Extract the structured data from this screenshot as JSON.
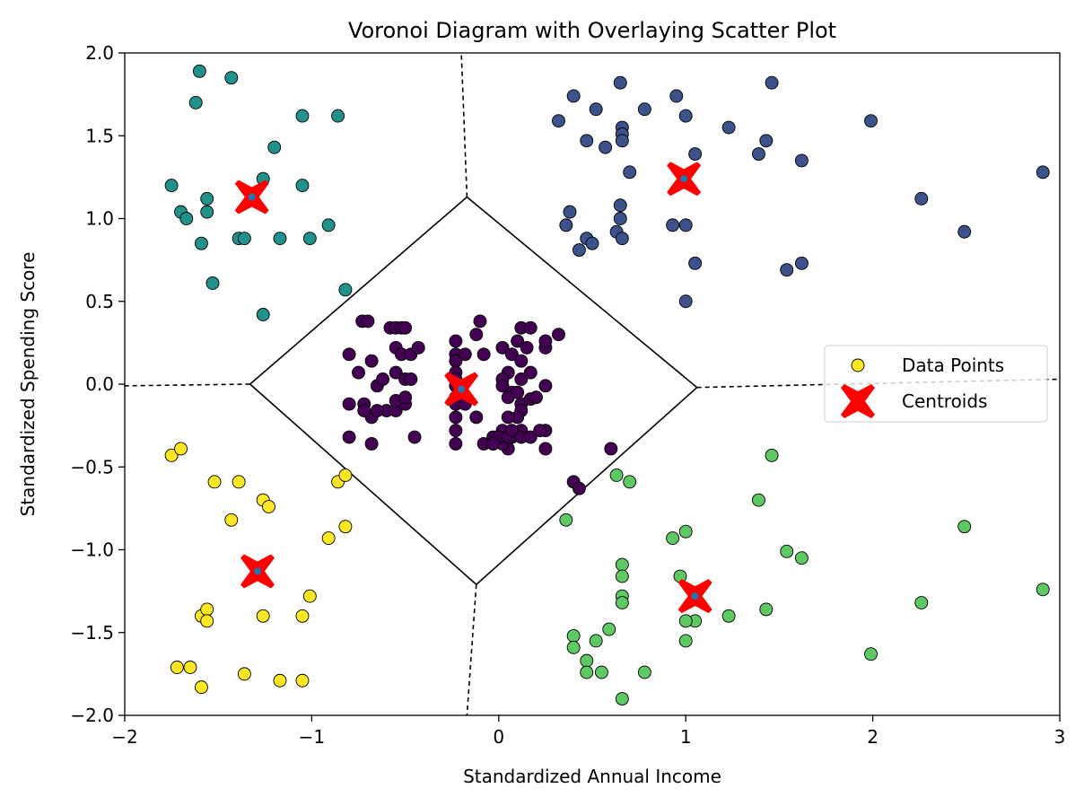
{
  "chart_data": {
    "type": "scatter",
    "title": "Voronoi Diagram with Overlaying Scatter Plot",
    "xlabel": "Standardized Annual Income",
    "ylabel": "Standardized Spending Score",
    "xlim": [
      -2,
      3
    ],
    "ylim": [
      -2,
      2
    ],
    "xticks": [
      -2,
      -1,
      0,
      1,
      2,
      3
    ],
    "xtick_labels": [
      "−2",
      "−1",
      "0",
      "1",
      "2",
      "3"
    ],
    "yticks": [
      -2.0,
      -1.5,
      -1.0,
      -0.5,
      0.0,
      0.5,
      1.0,
      1.5,
      2.0
    ],
    "ytick_labels": [
      "−2.0",
      "−1.5",
      "−1.0",
      "−0.5",
      "0.0",
      "0.5",
      "1.0",
      "1.5",
      "2.0"
    ],
    "grid": false,
    "legend": {
      "placement": "center-right",
      "entries": [
        "Data Points",
        "Centroids"
      ]
    },
    "colors": {
      "cluster_center": "#440154",
      "cluster_top_right": "#3b528b",
      "cluster_top_left": "#21918c",
      "cluster_bottom_right": "#5ec962",
      "cluster_bottom_left": "#fde725",
      "centroid_marker": "#ff0000",
      "centroid_dot": "#1f77b4",
      "voronoi_edge": "#000000"
    },
    "centroids": [
      {
        "x": -1.32,
        "y": 1.13
      },
      {
        "x": 0.99,
        "y": 1.24
      },
      {
        "x": -0.2,
        "y": -0.03
      },
      {
        "x": -1.29,
        "y": -1.13
      },
      {
        "x": 1.05,
        "y": -1.28
      }
    ],
    "voronoi": {
      "finite_edges": [
        [
          [
            -0.17,
            1.13
          ],
          [
            1.06,
            -0.02
          ]
        ],
        [
          [
            1.06,
            -0.02
          ],
          [
            -0.12,
            -1.21
          ]
        ],
        [
          [
            -0.12,
            -1.21
          ],
          [
            -1.33,
            0.0
          ]
        ],
        [
          [
            -1.33,
            0.0
          ],
          [
            -0.17,
            1.13
          ]
        ]
      ],
      "infinite_edges": [
        [
          [
            -0.17,
            1.13
          ],
          [
            -0.2,
            2.0
          ]
        ],
        [
          [
            1.06,
            -0.02
          ],
          [
            3.0,
            0.03
          ]
        ],
        [
          [
            -0.12,
            -1.21
          ],
          [
            -0.17,
            -2.0
          ]
        ],
        [
          [
            -1.33,
            0.0
          ],
          [
            -2.0,
            -0.01
          ]
        ]
      ]
    },
    "series": [
      {
        "name": "Data Points",
        "cluster": "center",
        "x": [
          -0.73,
          -0.7,
          -0.58,
          -0.55,
          -0.52,
          -0.5,
          -0.75,
          -0.55,
          -0.52,
          -0.47,
          -0.43,
          -0.68,
          -0.65,
          -0.8,
          -0.72,
          -0.62,
          -0.55,
          -0.5,
          -0.47,
          -0.68,
          -0.6,
          -0.55,
          -0.5,
          -0.8,
          -0.72,
          -0.65,
          -0.55,
          -0.5,
          -0.8,
          -0.68,
          -0.45,
          -0.23,
          -0.23,
          -0.23,
          -0.23,
          -0.23,
          -0.23,
          -0.23,
          -0.23,
          -0.23,
          -0.23,
          -0.23,
          -0.12,
          -0.18,
          -0.1,
          -0.12,
          -0.18,
          -0.08,
          -0.08,
          -0.03,
          -0.03,
          0.05,
          0.02,
          0.02,
          0.05,
          0.02,
          0.07,
          0.12,
          0.1,
          0.15,
          0.17,
          0.12,
          0.07,
          0.05,
          0.1,
          0.12,
          0.17,
          0.12,
          0.2,
          0.1,
          0.05,
          0.12,
          0.02,
          0.0,
          0.05,
          -0.03,
          0.02,
          0.07,
          0.12,
          0.17,
          0.25,
          0.25,
          0.25,
          0.25,
          0.32,
          0.07,
          0.12,
          0.17,
          0.22,
          0.25,
          0.6,
          0.4,
          0.43
        ],
        "y": [
          0.38,
          0.38,
          0.34,
          0.34,
          0.34,
          0.34,
          0.07,
          0.22,
          0.18,
          0.18,
          0.22,
          0.14,
          -0.01,
          0.18,
          -0.12,
          0.03,
          0.07,
          0.03,
          0.03,
          -0.2,
          -0.16,
          -0.16,
          -0.12,
          -0.12,
          -0.16,
          -0.16,
          -0.1,
          -0.08,
          -0.32,
          -0.36,
          -0.32,
          0.26,
          0.18,
          0.14,
          0.07,
          0.03,
          -0.01,
          -0.08,
          -0.12,
          -0.2,
          -0.28,
          -0.36,
          0.3,
          0.18,
          0.38,
          -0.2,
          -0.12,
          0.18,
          -0.36,
          -0.32,
          -0.36,
          0.07,
          0.03,
          -0.01,
          -0.39,
          -0.36,
          -0.32,
          0.34,
          0.26,
          0.22,
          0.34,
          0.03,
          -0.05,
          -0.08,
          -0.05,
          -0.12,
          -0.09,
          -0.16,
          -0.08,
          -0.2,
          -0.2,
          -0.28,
          -0.28,
          -0.32,
          -0.32,
          -0.36,
          0.22,
          0.18,
          0.14,
          0.07,
          0.22,
          0.26,
          -0.01,
          -0.28,
          0.3,
          -0.28,
          -0.32,
          -0.32,
          -0.28,
          -0.39,
          -0.39,
          -0.59,
          -0.63
        ]
      },
      {
        "name": "Data Points",
        "cluster": "top-right",
        "x": [
          0.65,
          0.4,
          0.52,
          0.95,
          0.32,
          1.46,
          0.66,
          0.66,
          0.66,
          0.47,
          0.57,
          1.0,
          1.23,
          0.78,
          1.43,
          1.39,
          1.05,
          0.7,
          1.62,
          1.99,
          2.91,
          0.65,
          0.38,
          0.65,
          0.36,
          0.93,
          1.0,
          0.63,
          0.47,
          0.5,
          0.66,
          0.43,
          2.26,
          2.49,
          1.05,
          1.62,
          1.54,
          1.0
        ],
        "y": [
          1.82,
          1.74,
          1.66,
          1.74,
          1.59,
          1.82,
          1.55,
          1.51,
          1.47,
          1.47,
          1.43,
          1.62,
          1.55,
          1.66,
          1.47,
          1.39,
          1.39,
          1.28,
          1.35,
          1.59,
          1.28,
          1.08,
          1.04,
          1.0,
          0.96,
          0.96,
          0.96,
          0.92,
          0.88,
          0.85,
          0.88,
          0.81,
          1.12,
          0.92,
          0.73,
          0.73,
          0.69,
          0.5
        ]
      },
      {
        "name": "Data Points",
        "cluster": "top-left",
        "x": [
          -1.6,
          -1.43,
          -1.62,
          -1.05,
          -0.86,
          -1.2,
          -1.75,
          -1.26,
          -1.05,
          -1.56,
          -1.7,
          -1.56,
          -1.67,
          -1.59,
          -1.39,
          -1.36,
          -1.17,
          -1.01,
          -0.91,
          -1.53,
          -0.82,
          -1.26
        ],
        "y": [
          1.89,
          1.85,
          1.7,
          1.62,
          1.62,
          1.43,
          1.2,
          1.24,
          1.2,
          1.12,
          1.04,
          1.04,
          1.0,
          0.85,
          0.88,
          0.88,
          0.88,
          0.88,
          0.96,
          0.61,
          0.57,
          0.42
        ]
      },
      {
        "name": "Data Points",
        "cluster": "bottom-right",
        "x": [
          0.63,
          0.7,
          0.36,
          1.46,
          1.39,
          0.93,
          1.0,
          0.66,
          0.66,
          0.97,
          1.54,
          1.62,
          0.66,
          0.66,
          2.49,
          2.26,
          1.43,
          1.05,
          1.23,
          2.91,
          0.59,
          0.4,
          0.4,
          0.52,
          1.0,
          1.0,
          0.47,
          0.47,
          0.55,
          0.78,
          0.66,
          1.99
        ],
        "y": [
          -0.55,
          -0.59,
          -0.82,
          -0.43,
          -0.7,
          -0.93,
          -0.89,
          -1.09,
          -1.16,
          -1.16,
          -1.01,
          -1.05,
          -1.28,
          -1.32,
          -0.86,
          -1.32,
          -1.36,
          -1.43,
          -1.4,
          -1.24,
          -1.48,
          -1.52,
          -1.59,
          -1.55,
          -1.43,
          -1.55,
          -1.67,
          -1.74,
          -1.74,
          -1.74,
          -1.9,
          -1.63
        ]
      },
      {
        "name": "Data Points",
        "cluster": "bottom-left",
        "x": [
          -1.75,
          -1.7,
          -1.52,
          -1.39,
          -1.26,
          -1.23,
          -1.43,
          -0.86,
          -0.82,
          -0.82,
          -0.91,
          -1.01,
          -1.59,
          -1.56,
          -1.56,
          -1.26,
          -1.05,
          -1.72,
          -1.65,
          -1.36,
          -1.17,
          -1.05,
          -1.59
        ],
        "y": [
          -0.43,
          -0.39,
          -0.59,
          -0.59,
          -0.7,
          -0.74,
          -0.82,
          -0.59,
          -0.55,
          -0.86,
          -0.93,
          -1.28,
          -1.4,
          -1.36,
          -1.43,
          -1.4,
          -1.4,
          -1.71,
          -1.71,
          -1.75,
          -1.79,
          -1.79,
          -1.83
        ]
      }
    ]
  }
}
